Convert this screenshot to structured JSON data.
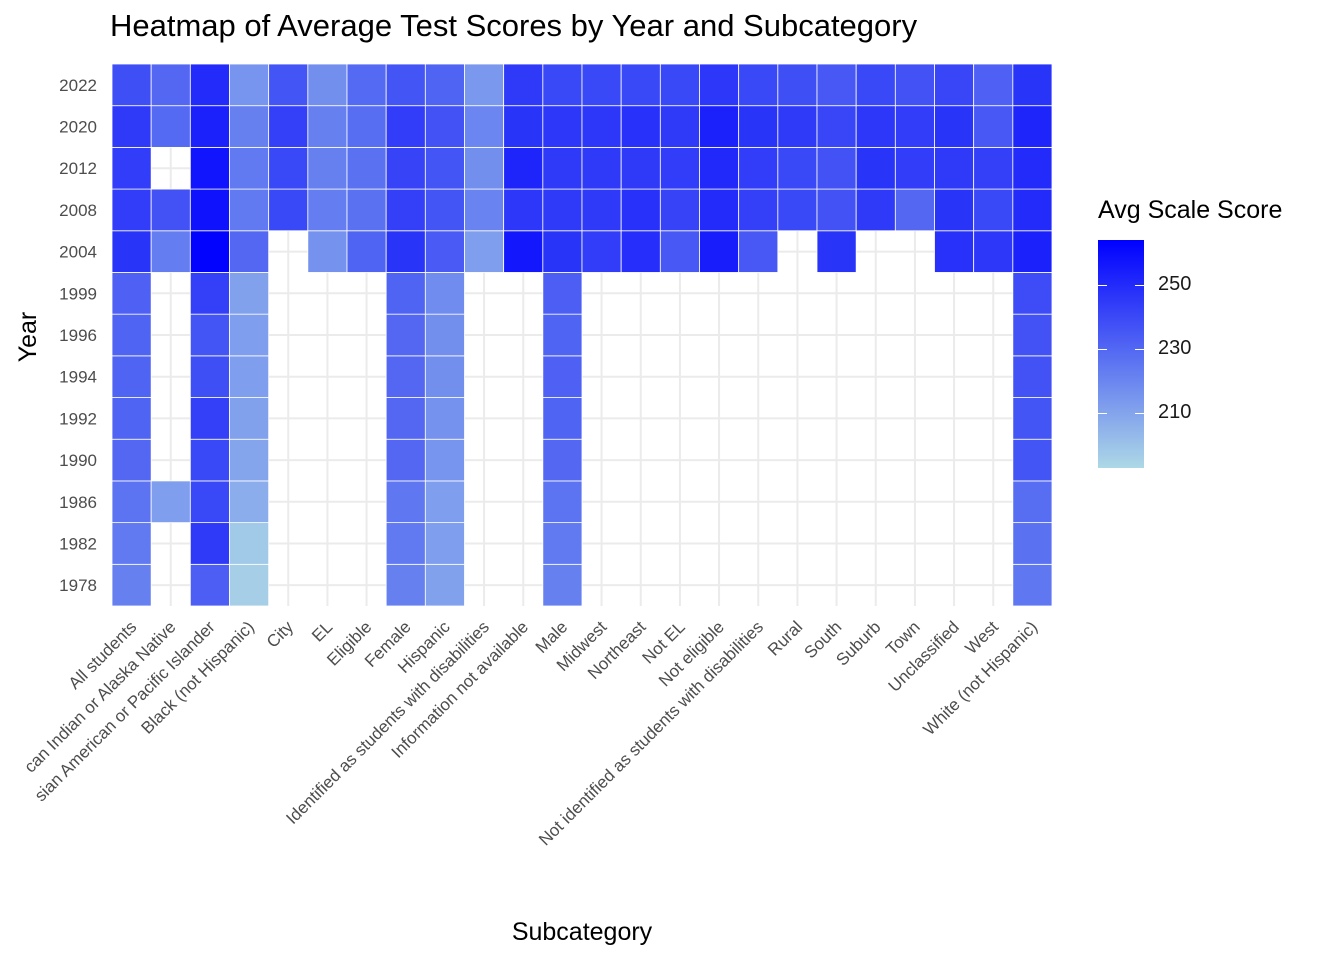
{
  "chart_data": {
    "type": "heatmap",
    "title": "Heatmap of Average Test Scores by Year and Subcategory",
    "xlabel": "Subcategory",
    "ylabel": "Year",
    "x_categories": [
      "All students",
      "American Indian or Alaska Native",
      "Asian American or Pacific Islander",
      "Black (not Hispanic)",
      "City",
      "EL",
      "Eligible",
      "Female",
      "Hispanic",
      "Identified as students with disabilities",
      "Information not available",
      "Male",
      "Midwest",
      "Northeast",
      "Not EL",
      "Not eligible",
      "Not identified as students with disabilities",
      "Rural",
      "South",
      "Suburb",
      "Town",
      "Unclassified",
      "West",
      "White (not Hispanic)"
    ],
    "x_tick_labels": [
      "All students",
      "can Indian or Alaska Native",
      "sian American or Pacific Islander",
      "Black (not Hispanic)",
      "City",
      "EL",
      "Eligible",
      "Female",
      "Hispanic",
      "Identified as students with disabilities",
      "Information not available",
      "Male",
      "Midwest",
      "Northeast",
      "Not EL",
      "Not eligible",
      "Not identified as students with disabilities",
      "Rural",
      "South",
      "Suburb",
      "Town",
      "Unclassified",
      "West",
      "White (not Hispanic)"
    ],
    "y_categories": [
      "1978",
      "1982",
      "1986",
      "1990",
      "1992",
      "1994",
      "1996",
      "1999",
      "2004",
      "2008",
      "2012",
      "2020",
      "2022"
    ],
    "values": [
      [
        222,
        null,
        233,
        196,
        null,
        null,
        null,
        222,
        211,
        null,
        null,
        222,
        null,
        null,
        null,
        null,
        null,
        null,
        null,
        null,
        null,
        null,
        null,
        225
      ],
      [
        224,
        null,
        245,
        198,
        null,
        null,
        null,
        224,
        212,
        null,
        null,
        224,
        null,
        null,
        null,
        null,
        null,
        null,
        null,
        null,
        null,
        null,
        null,
        227
      ],
      [
        226,
        212,
        240,
        207,
        null,
        null,
        null,
        225,
        212,
        null,
        null,
        226,
        null,
        null,
        null,
        null,
        null,
        null,
        null,
        null,
        null,
        null,
        null,
        228
      ],
      [
        230,
        null,
        240,
        210,
        null,
        null,
        null,
        230,
        215,
        null,
        null,
        230,
        null,
        null,
        null,
        null,
        null,
        null,
        null,
        null,
        null,
        null,
        null,
        236
      ],
      [
        231,
        null,
        243,
        211,
        null,
        null,
        null,
        230,
        216,
        null,
        null,
        231,
        null,
        null,
        null,
        null,
        null,
        null,
        null,
        null,
        null,
        null,
        null,
        236
      ],
      [
        231,
        null,
        238,
        212,
        null,
        null,
        null,
        230,
        217,
        null,
        null,
        232,
        null,
        null,
        null,
        null,
        null,
        null,
        null,
        null,
        null,
        null,
        null,
        237
      ],
      [
        231,
        null,
        236,
        212,
        null,
        null,
        null,
        230,
        217,
        null,
        null,
        231,
        null,
        null,
        null,
        null,
        null,
        null,
        null,
        null,
        null,
        null,
        null,
        237
      ],
      [
        232,
        null,
        243,
        211,
        null,
        null,
        null,
        231,
        218,
        null,
        null,
        233,
        null,
        null,
        null,
        null,
        null,
        null,
        null,
        null,
        null,
        null,
        null,
        239
      ],
      [
        247,
        223,
        263,
        230,
        null,
        216,
        231,
        247,
        234,
        212,
        256,
        247,
        244,
        249,
        235,
        254,
        235,
        null,
        247,
        null,
        null,
        248,
        246,
        253
      ],
      [
        244,
        237,
        258,
        224,
        240,
        223,
        227,
        243,
        236,
        221,
        246,
        245,
        245,
        248,
        242,
        250,
        243,
        240,
        237,
        245,
        230,
        247,
        240,
        250
      ],
      [
        244,
        null,
        257,
        224,
        240,
        222,
        227,
        242,
        236,
        217,
        252,
        245,
        245,
        245,
        244,
        251,
        244,
        240,
        237,
        247,
        244,
        245,
        243,
        250
      ],
      [
        245,
        229,
        253,
        222,
        243,
        222,
        228,
        244,
        237,
        220,
        247,
        246,
        246,
        248,
        245,
        253,
        247,
        245,
        241,
        246,
        244,
        247,
        235,
        252
      ],
      [
        238,
        230,
        250,
        215,
        236,
        217,
        229,
        236,
        231,
        214,
        245,
        240,
        240,
        240,
        240,
        246,
        240,
        238,
        235,
        240,
        237,
        241,
        232,
        247
      ]
    ],
    "color_scale": {
      "low": "#add8e6",
      "high": "#0000ff",
      "min": 193,
      "max": 264
    },
    "legend": {
      "title": "Avg Scale Score",
      "ticks": [
        210,
        230,
        250
      ],
      "placement": "right"
    },
    "grid": true
  }
}
